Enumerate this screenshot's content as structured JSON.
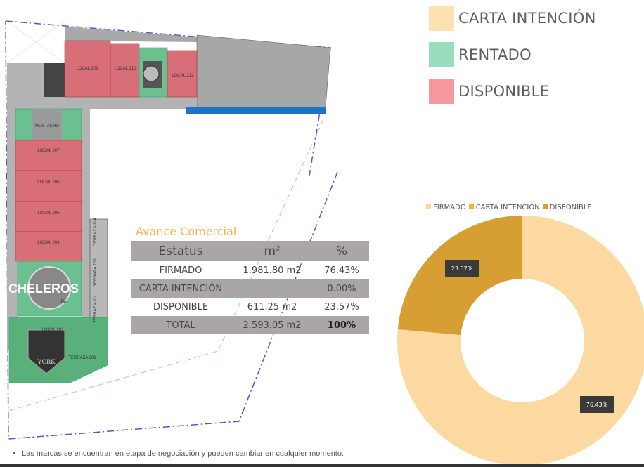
{
  "legend": [
    {
      "label": "CARTA INTENCIÓN",
      "color": "#FEE2B2"
    },
    {
      "label": "RENTADO",
      "color": "#98DEBD"
    },
    {
      "label": "DISPONIBLE",
      "color": "#F6999F"
    }
  ],
  "floor_plan": {
    "units": [
      {
        "label": "LOCAL 209",
        "status": "disponible"
      },
      {
        "label": "LOCAL 210",
        "status": "disponible"
      },
      {
        "label": "LOCAL 212",
        "status": "disponible"
      },
      {
        "label": "LOCAL 207",
        "status": "disponible"
      },
      {
        "label": "LOCAL 206",
        "status": "disponible"
      },
      {
        "label": "LOCAL 205",
        "status": "disponible"
      },
      {
        "label": "LOCAL 204",
        "status": "disponible"
      },
      {
        "label": "LOCAL 201",
        "status": "rentado"
      },
      {
        "label": "TERRAZA 201",
        "status": "rentado"
      },
      {
        "label": "TERRAZA 202",
        "status": "common"
      },
      {
        "label": "TERRAZA 203",
        "status": "common"
      },
      {
        "label": "TERRAZA 204",
        "status": "common"
      }
    ],
    "brands": [
      "MOSTACHO",
      "CHELEROS",
      "Bar",
      "YORK"
    ]
  },
  "table": {
    "title": "Avance Comercial",
    "headers": [
      "Estatus",
      "m",
      "%"
    ],
    "header_sup": "2",
    "rows": [
      [
        "FIRMADO",
        "1,981.80 m2",
        "76.43%"
      ],
      [
        "CARTA INTENCIÓN",
        "",
        "0.00%"
      ],
      [
        "DISPONIBLE",
        "611.25 m2",
        "23.57%"
      ],
      [
        "TOTAL",
        "2,593.05 m2",
        "100%"
      ]
    ]
  },
  "chart_data": {
    "type": "pie",
    "donut": true,
    "legend_position": "top",
    "categories": [
      "FIRMADO",
      "CARTA INTENCIÓN",
      "DISPONIBLE"
    ],
    "values": [
      76.43,
      0.0,
      23.57
    ],
    "data_labels": [
      "76.43%",
      "",
      "23.57%"
    ],
    "colors": [
      "#FDD9A2",
      "#F5B335",
      "#D69E33"
    ]
  },
  "footnote": "Las marcas se encuentran en etapa de negociación y pueden cambiar en cualquier momento."
}
